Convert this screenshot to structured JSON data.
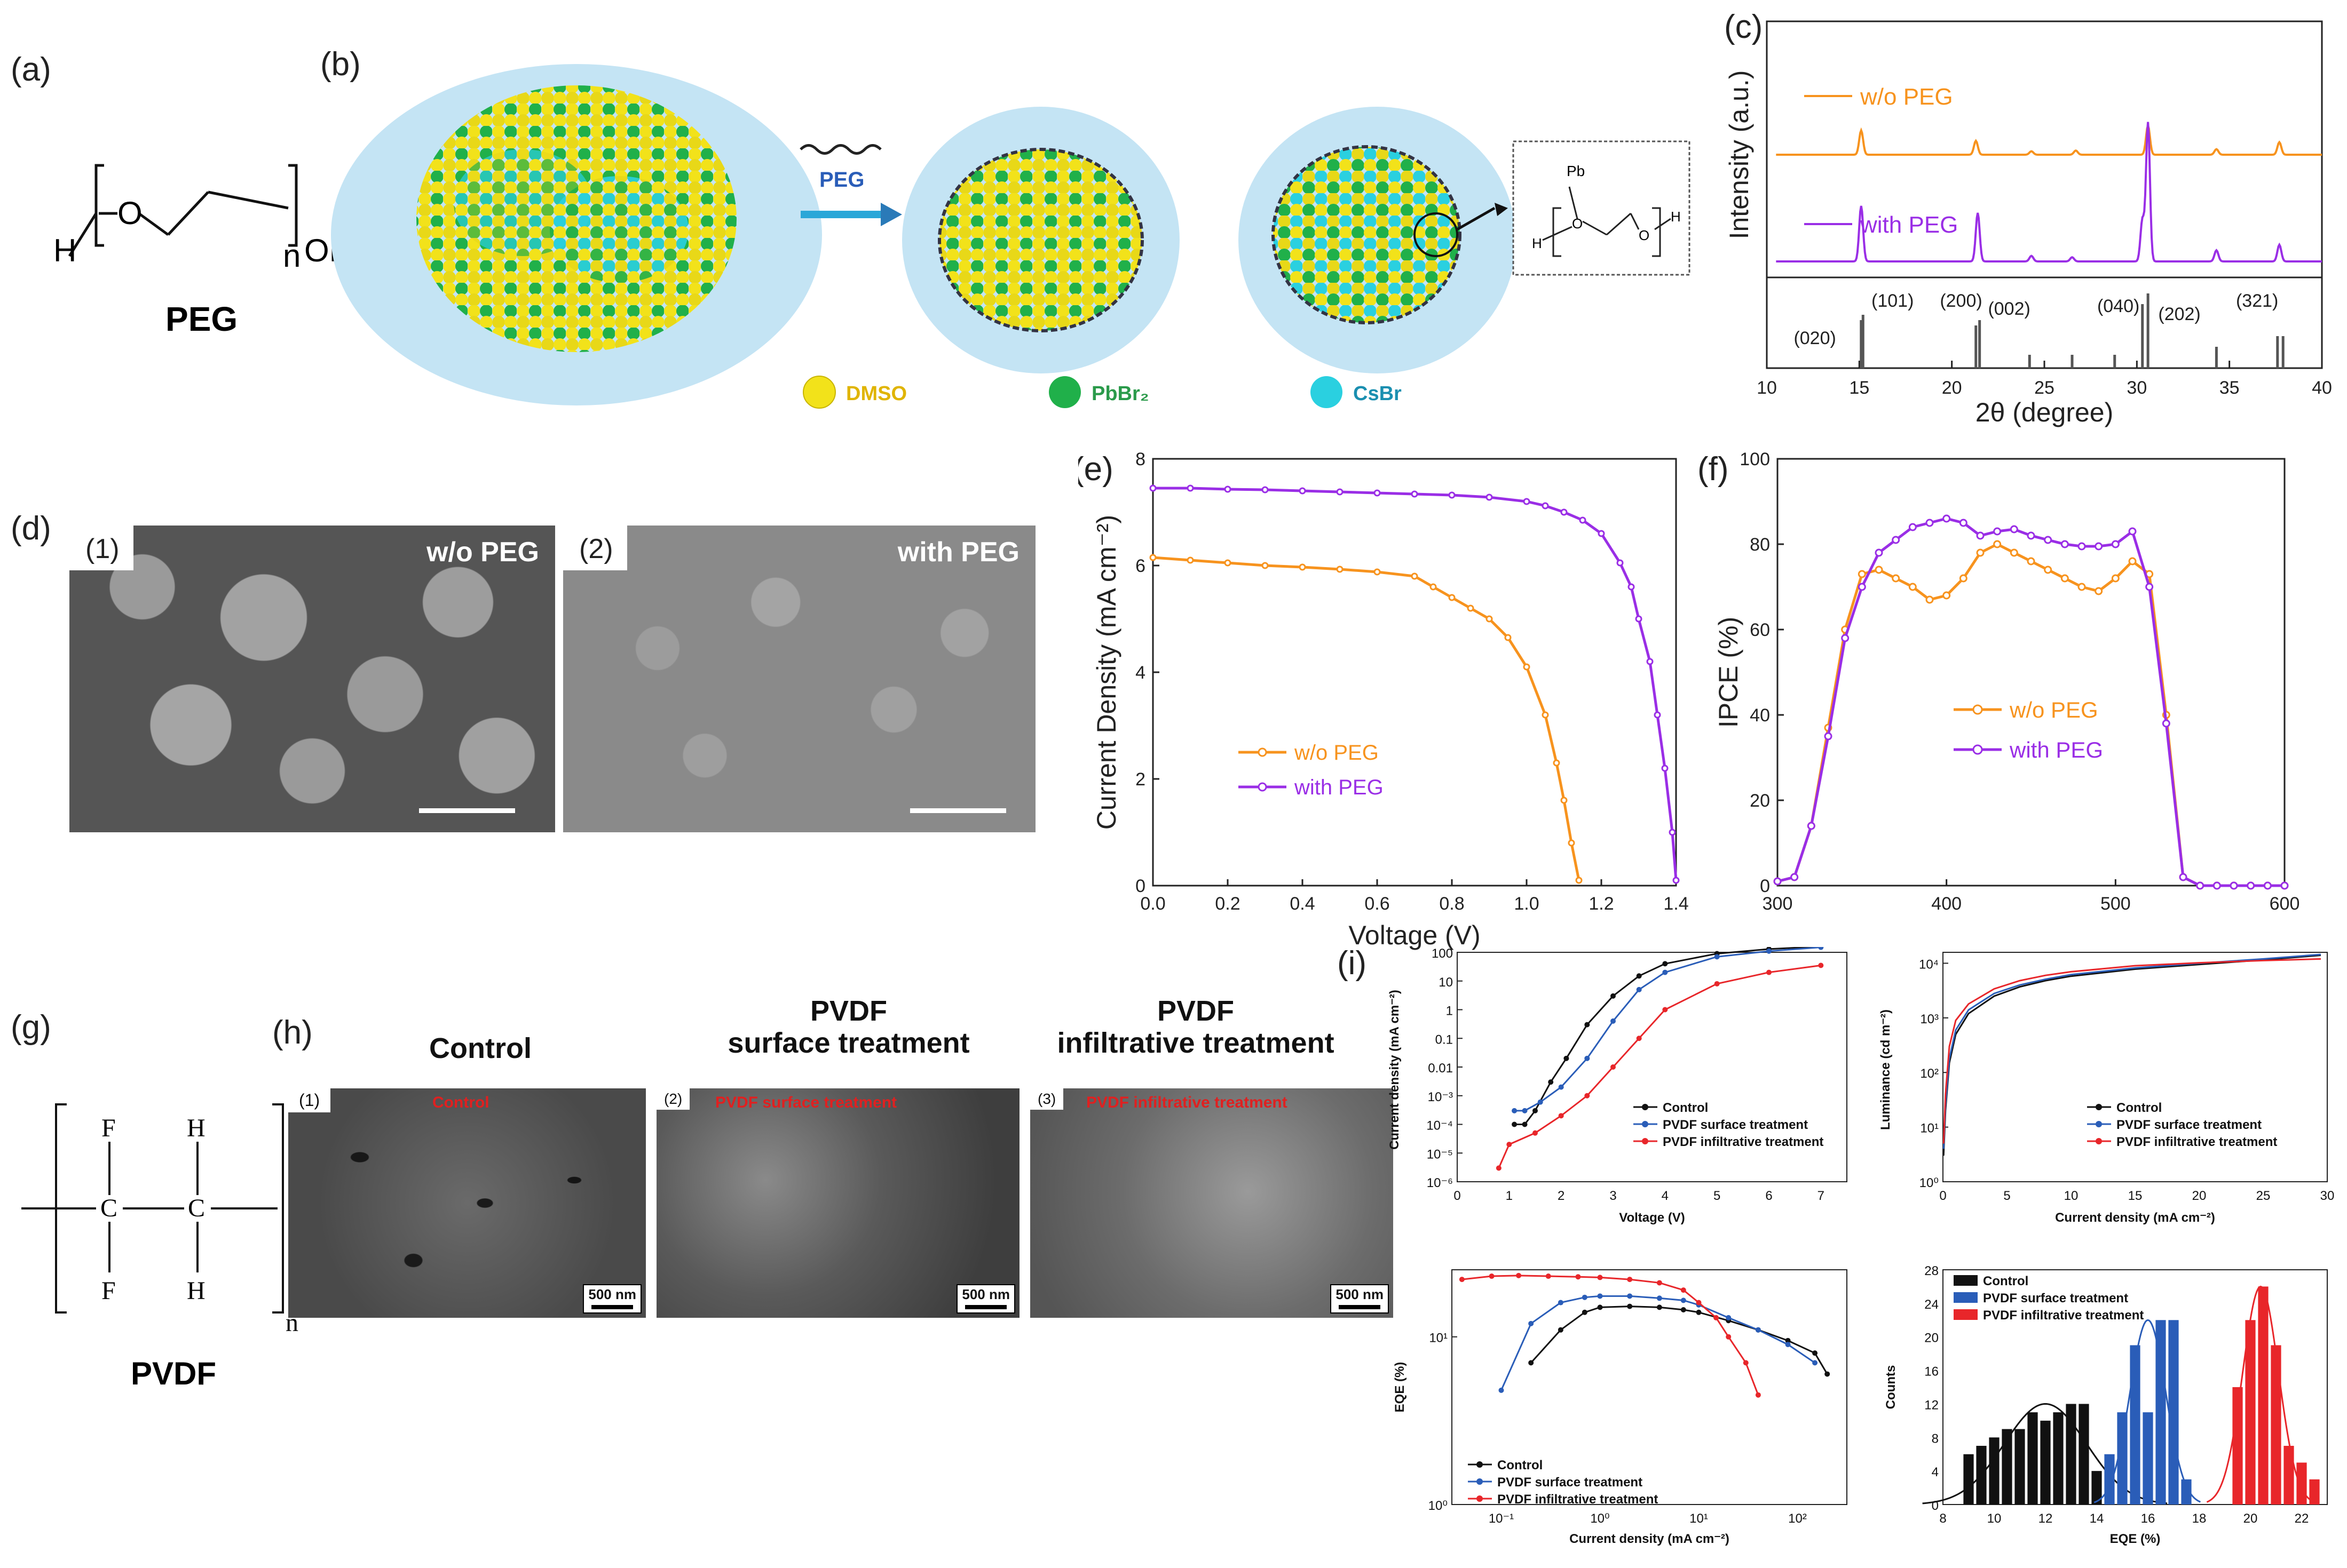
{
  "panels": {
    "a": "(a)",
    "b": "(b)",
    "c": "(c)",
    "d": "(d)",
    "e": "(e)",
    "f": "(f)",
    "g": "(g)",
    "h": "(h)",
    "i": "(i)"
  },
  "peg": {
    "name": "PEG",
    "h": "H",
    "o": "O",
    "n": "n",
    "oh": "OH"
  },
  "scheme": {
    "arrow_label": "PEG",
    "legend": {
      "dmso": "DMSO",
      "pbbr2": "PbBr₂",
      "csbr": "CsBr"
    },
    "inset": {
      "pb": "Pb",
      "h1": "H",
      "o1": "O",
      "o2": "O",
      "h2": "H"
    }
  },
  "sem_d": {
    "img1": {
      "tag": "(1)",
      "name": "w/o PEG"
    },
    "img2": {
      "tag": "(2)",
      "name": "with PEG"
    }
  },
  "pvdf": {
    "name": "PVDF",
    "f": "F",
    "c": "C",
    "h": "H",
    "n": "n"
  },
  "sem_h": {
    "titles": [
      "Control",
      "PVDF\nsurface treatment",
      "PVDF\ninfiltrative treatment"
    ],
    "tags": [
      "(1)",
      "(2)",
      "(3)"
    ],
    "overlays": [
      "Control",
      "PVDF surface treatment",
      "PVDF infiltrative treatment"
    ],
    "scale": "500 nm"
  },
  "colors": {
    "orange": "#f7931e",
    "purple": "#9a2ee6",
    "black": "#111111",
    "blue": "#2a5db8",
    "red": "#e8262a"
  },
  "chart_data": [
    {
      "id": "c",
      "type": "line",
      "title": "",
      "xlabel": "2θ (degree)",
      "ylabel": "Intensity (a.u.)",
      "xlim": [
        10,
        40
      ],
      "xticks": [
        10,
        15,
        20,
        25,
        30,
        35,
        40
      ],
      "series": [
        {
          "name": "w/o PEG",
          "peaks": [
            [
              15.1,
              0.35
            ],
            [
              21.3,
              0.2
            ],
            [
              24.3,
              0.05
            ],
            [
              26.7,
              0.06
            ],
            [
              30.6,
              0.42
            ],
            [
              34.3,
              0.08
            ],
            [
              37.7,
              0.18
            ]
          ]
        },
        {
          "name": "with PEG",
          "peaks": [
            [
              15.1,
              0.4
            ],
            [
              21.4,
              0.35
            ],
            [
              24.3,
              0.04
            ],
            [
              26.5,
              0.03
            ],
            [
              30.3,
              0.3
            ],
            [
              30.6,
              1.0
            ],
            [
              34.3,
              0.08
            ],
            [
              37.7,
              0.12
            ]
          ]
        }
      ],
      "reference_hkl": [
        "(020)",
        "(101)",
        "(200)",
        "(002)",
        "(040)",
        "(202)",
        "(321)"
      ]
    },
    {
      "id": "e",
      "type": "line",
      "xlabel": "Voltage (V)",
      "ylabel": "Current Density (mA cm⁻²)",
      "xlim": [
        0.0,
        1.4
      ],
      "ylim": [
        0,
        8
      ],
      "xticks": [
        0.0,
        0.2,
        0.4,
        0.6,
        0.8,
        1.0,
        1.2,
        1.4
      ],
      "yticks": [
        0,
        2,
        4,
        6,
        8
      ],
      "series": [
        {
          "name": "w/o PEG",
          "x": [
            0,
            0.1,
            0.2,
            0.3,
            0.4,
            0.5,
            0.6,
            0.7,
            0.75,
            0.8,
            0.85,
            0.9,
            0.95,
            1.0,
            1.05,
            1.08,
            1.1,
            1.12,
            1.14
          ],
          "y": [
            6.15,
            6.1,
            6.05,
            6.0,
            5.97,
            5.93,
            5.88,
            5.8,
            5.6,
            5.4,
            5.2,
            5.0,
            4.65,
            4.1,
            3.2,
            2.3,
            1.6,
            0.8,
            0.1
          ]
        },
        {
          "name": "with PEG",
          "x": [
            0,
            0.1,
            0.2,
            0.3,
            0.4,
            0.5,
            0.6,
            0.7,
            0.8,
            0.9,
            1.0,
            1.05,
            1.1,
            1.15,
            1.2,
            1.25,
            1.28,
            1.3,
            1.33,
            1.35,
            1.37,
            1.39,
            1.4
          ],
          "y": [
            7.45,
            7.45,
            7.43,
            7.42,
            7.4,
            7.38,
            7.36,
            7.34,
            7.32,
            7.28,
            7.2,
            7.12,
            7.0,
            6.85,
            6.6,
            6.05,
            5.6,
            5.0,
            4.2,
            3.2,
            2.2,
            1.0,
            0.1
          ]
        }
      ]
    },
    {
      "id": "f",
      "type": "line",
      "xlabel": "",
      "ylabel": "IPCE (%)",
      "xlim": [
        300,
        600
      ],
      "ylim": [
        0,
        100
      ],
      "xticks": [
        300,
        400,
        500,
        600
      ],
      "yticks": [
        0,
        20,
        40,
        60,
        80,
        100
      ],
      "series": [
        {
          "name": "w/o PEG",
          "x": [
            300,
            310,
            320,
            330,
            340,
            350,
            360,
            370,
            380,
            390,
            400,
            410,
            420,
            430,
            440,
            450,
            460,
            470,
            480,
            490,
            500,
            510,
            520,
            530,
            540,
            550,
            560,
            570,
            580,
            590,
            600
          ],
          "y": [
            1,
            2,
            14,
            37,
            60,
            73,
            74,
            72,
            70,
            67,
            68,
            72,
            78,
            80,
            78,
            76,
            74,
            72,
            70,
            69,
            72,
            76,
            73,
            40,
            2,
            0,
            0,
            0,
            0,
            0,
            0
          ]
        },
        {
          "name": "with PEG",
          "x": [
            300,
            310,
            320,
            330,
            340,
            350,
            360,
            370,
            380,
            390,
            400,
            410,
            420,
            430,
            440,
            450,
            460,
            470,
            480,
            490,
            500,
            510,
            520,
            530,
            540,
            550,
            560,
            570,
            580,
            590,
            600
          ],
          "y": [
            1,
            2,
            14,
            35,
            58,
            70,
            78,
            81,
            84,
            85,
            86,
            85,
            82,
            83,
            83.5,
            82,
            81,
            80,
            79.5,
            79.5,
            80,
            83,
            70,
            38,
            2,
            0,
            0,
            0,
            0,
            0,
            0
          ]
        }
      ]
    },
    {
      "id": "i1",
      "type": "line",
      "yscale": "log",
      "xlabel": "Voltage (V)",
      "ylabel": "Current density (mA cm⁻²)",
      "xlim": [
        0,
        7.5
      ],
      "ylim_exp": [
        -6,
        2
      ],
      "xticks": [
        0,
        1,
        2,
        3,
        4,
        5,
        6,
        7
      ],
      "ytick_labels": [
        "10⁻⁶",
        "10⁻⁵",
        "10⁻⁴",
        "10⁻³",
        "0.01",
        "0.1",
        "1",
        "10",
        "100"
      ],
      "series": [
        {
          "name": "Control",
          "x": [
            1.1,
            1.3,
            1.5,
            1.8,
            2.1,
            2.5,
            3,
            3.5,
            4,
            5,
            6,
            7
          ],
          "y": [
            0.0001,
            0.0001,
            0.0003,
            0.003,
            0.02,
            0.3,
            3,
            15,
            40,
            90,
            130,
            160
          ]
        },
        {
          "name": "PVDF surface treatment",
          "x": [
            1.1,
            1.3,
            1.6,
            2,
            2.5,
            3,
            3.5,
            4,
            5,
            6,
            7
          ],
          "y": [
            0.0003,
            0.0003,
            0.0006,
            0.002,
            0.02,
            0.4,
            5,
            20,
            70,
            110,
            150
          ]
        },
        {
          "name": "PVDF infiltrative treatment",
          "x": [
            0.8,
            1,
            1.5,
            2,
            2.5,
            3,
            3.5,
            4,
            5,
            6,
            7
          ],
          "y": [
            3e-06,
            2e-05,
            5e-05,
            0.0002,
            0.001,
            0.01,
            0.1,
            1,
            8,
            20,
            35
          ]
        }
      ]
    },
    {
      "id": "i2",
      "type": "line",
      "yscale": "log",
      "xlabel": "Current density (mA cm⁻²)",
      "ylabel": "Luminance (cd m⁻²)",
      "xlim": [
        0,
        30
      ],
      "ylim_exp": [
        0,
        4.2
      ],
      "xticks": [
        0,
        5,
        10,
        15,
        20,
        25,
        30
      ],
      "ytick_labels": [
        "10⁰",
        "10¹",
        "10²",
        "10³",
        "10⁴"
      ],
      "series": [
        {
          "name": "Control",
          "x": [
            0.05,
            0.2,
            0.5,
            1,
            2,
            4,
            6,
            8,
            10,
            15,
            20,
            25,
            29.5
          ],
          "y": [
            3,
            20,
            150,
            500,
            1200,
            2500,
            3700,
            4800,
            5800,
            7800,
            9500,
            11500,
            14000
          ]
        },
        {
          "name": "PVDF surface treatment",
          "x": [
            0.05,
            0.2,
            0.5,
            1,
            2,
            4,
            6,
            8,
            10,
            15,
            20,
            25,
            29.5
          ],
          "y": [
            4,
            25,
            180,
            600,
            1400,
            2800,
            4000,
            5100,
            6200,
            8200,
            10000,
            12000,
            14500
          ]
        },
        {
          "name": "PVDF infiltrative treatment",
          "x": [
            0.05,
            0.2,
            0.5,
            1,
            2,
            4,
            6,
            8,
            10,
            15,
            20,
            25,
            29.5
          ],
          "y": [
            5,
            40,
            300,
            900,
            1800,
            3400,
            4800,
            6000,
            7000,
            9000,
            10200,
            11200,
            12000
          ]
        }
      ]
    },
    {
      "id": "i3",
      "type": "line",
      "xscale": "log",
      "yscale": "log",
      "xlabel": "Current density (mA cm⁻²)",
      "ylabel": "EQE (%)",
      "xlim_exp": [
        -1.5,
        2.5
      ],
      "ylim_exp": [
        0,
        1.4
      ],
      "xtick_labels": [
        "10⁻¹",
        "10⁰",
        "10¹",
        "10²"
      ],
      "ytick_labels": [
        "10⁰",
        "10¹"
      ],
      "series": [
        {
          "name": "Control",
          "x": [
            0.2,
            0.4,
            0.7,
            1,
            2,
            4,
            7,
            10,
            20,
            40,
            80,
            150,
            200
          ],
          "y": [
            7,
            11,
            14,
            15,
            15.2,
            15,
            14.5,
            14,
            12.5,
            11,
            9.5,
            8,
            6
          ]
        },
        {
          "name": "PVDF surface treatment",
          "x": [
            0.1,
            0.2,
            0.4,
            0.7,
            1,
            2,
            4,
            7,
            10,
            20,
            40,
            80,
            150
          ],
          "y": [
            4.8,
            12,
            16,
            17.2,
            17.5,
            17.5,
            17,
            16.5,
            15.5,
            13,
            11,
            9,
            7
          ]
        },
        {
          "name": "PVDF infiltrative treatment",
          "x": [
            0.04,
            0.08,
            0.15,
            0.3,
            0.6,
            1,
            2,
            4,
            7,
            10,
            15,
            20,
            30,
            40
          ],
          "y": [
            22,
            23,
            23.2,
            23,
            22.8,
            22.6,
            22,
            21,
            19,
            16,
            13,
            10,
            7,
            4.5
          ]
        }
      ]
    },
    {
      "id": "i4",
      "type": "bar",
      "xlabel": "EQE (%)",
      "ylabel": "Counts",
      "xlim": [
        8,
        23
      ],
      "ylim": [
        0,
        28
      ],
      "xticks": [
        8,
        10,
        12,
        14,
        16,
        18,
        20,
        22
      ],
      "yticks": [
        0,
        4,
        8,
        12,
        16,
        20,
        24,
        28
      ],
      "series": [
        {
          "name": "Control",
          "x": [
            9,
            9.5,
            10,
            10.5,
            11,
            11.5,
            12,
            12.5,
            13,
            13.5,
            14
          ],
          "values": [
            6,
            7,
            8,
            9,
            9,
            11,
            10,
            11,
            12,
            12,
            4
          ],
          "fit_peak": [
            12.0,
            12
          ]
        },
        {
          "name": "PVDF surface treatment",
          "x": [
            14.5,
            15,
            15.5,
            16,
            16.5,
            17,
            17.5
          ],
          "values": [
            6,
            11,
            19,
            11,
            22,
            22,
            3
          ],
          "fit_peak": [
            16.0,
            22
          ]
        },
        {
          "name": "PVDF infiltrative treatment",
          "x": [
            19.5,
            20,
            20.5,
            21,
            21.5,
            22,
            22.5
          ],
          "values": [
            14,
            22,
            26,
            19,
            7,
            5,
            3
          ],
          "fit_peak": [
            20.4,
            26
          ]
        }
      ]
    }
  ]
}
